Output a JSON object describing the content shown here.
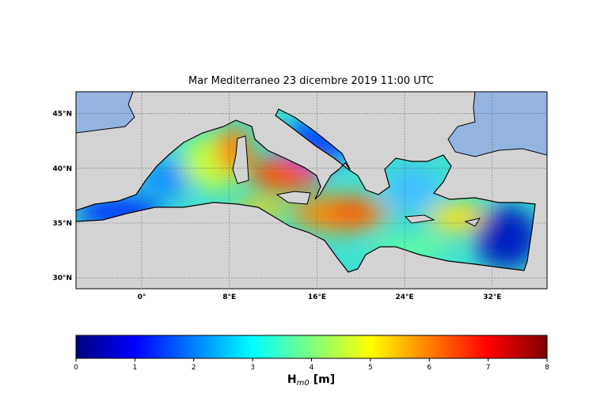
{
  "chart_data": {
    "type": "map",
    "title": "Mar Mediterraneo 23 dicembre 2019  11:00 UTC",
    "xlim": [
      -6,
      37
    ],
    "ylim": [
      29,
      47
    ],
    "xticks": [
      {
        "value": 0,
        "label": "0°"
      },
      {
        "value": 8,
        "label": "8°E"
      },
      {
        "value": 16,
        "label": "16°E"
      },
      {
        "value": 24,
        "label": "24°E"
      },
      {
        "value": 32,
        "label": "32°E"
      }
    ],
    "yticks": [
      {
        "value": 30,
        "label": "30°N"
      },
      {
        "value": 35,
        "label": "35°N"
      },
      {
        "value": 40,
        "label": "40°N"
      },
      {
        "value": 45,
        "label": "45°N"
      }
    ],
    "grid": true,
    "colorbar": {
      "label": "H",
      "label_subscript": "m0",
      "label_unit": "[m]",
      "clim": [
        0,
        8
      ],
      "ticks": [
        0,
        1,
        2,
        3,
        4,
        5,
        6,
        7,
        8
      ],
      "colors": [
        "#00007f",
        "#0000ff",
        "#007fff",
        "#00ffff",
        "#7fff7f",
        "#ffff00",
        "#ff7f00",
        "#ff0000",
        "#7f0000"
      ]
    }
  }
}
